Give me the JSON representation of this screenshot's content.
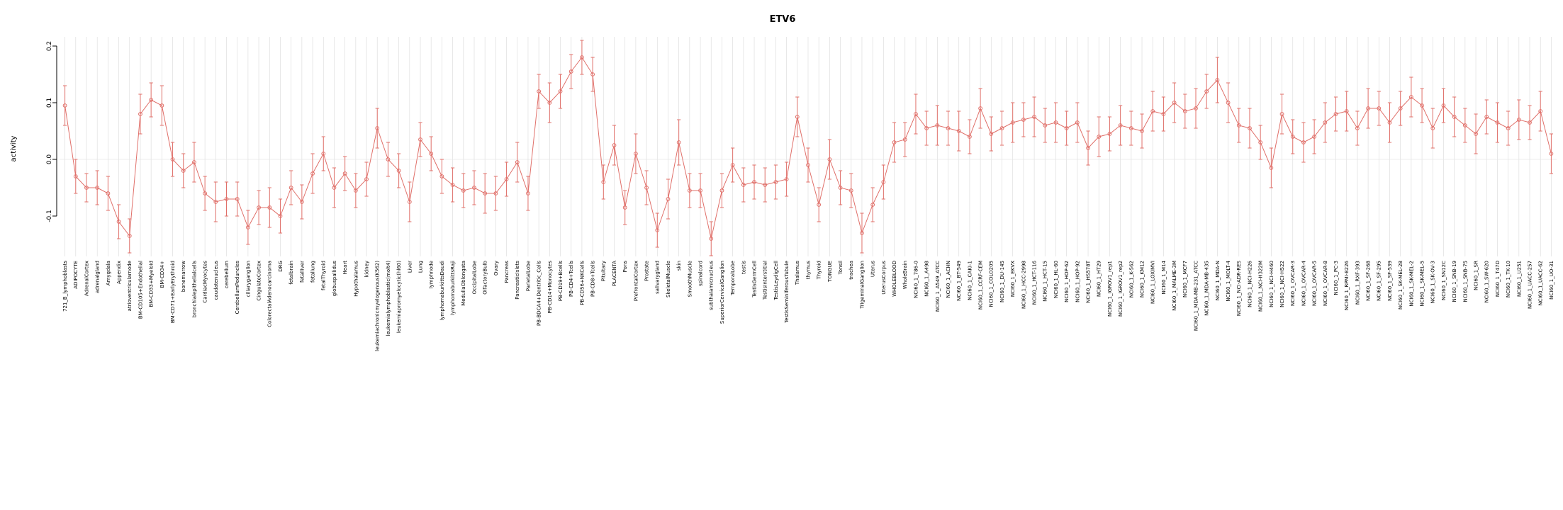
{
  "title": "ETV6",
  "chart_data": {
    "type": "line",
    "title": "ETV6",
    "xlabel": "",
    "ylabel": "activity",
    "ylim": [
      -0.19,
      0.22
    ],
    "yticks": [
      -0.1,
      0.0,
      0.1,
      0.2
    ],
    "ytick_labels": [
      "-0.1",
      "0.0",
      "0.1",
      "0.2"
    ],
    "grid": "vertical-per-category",
    "legend": "none",
    "marker": "open-circle",
    "error_bars": true,
    "series_color": "#e0706a",
    "grid_color": "#dedede",
    "zero_line_color": "#e6e6e6",
    "categories": [
      "721_B_lymphoblasts",
      "ADIPOCYTE",
      "AdrenalCortex",
      "adrenalgland",
      "Amygdala",
      "Appendix",
      "atrioventricularnode",
      "BM-CD105+Endothelial",
      "BM-CD33+Myeloid",
      "BM-CD34+",
      "BM-CD71+EarlyErythroid",
      "bonemarrow",
      "bronchialepithelialcells",
      "CardiacMyocytes",
      "caudatenucleus",
      "cerebellum",
      "CerebellumPeduncles",
      "ciliaryganglion",
      "CingulateCortex",
      "ColorectalAdenocarcinoma",
      "DRG",
      "fetalbrain",
      "fetalliver",
      "fetallung",
      "fetalThyroid",
      "globuspallidus",
      "Heart",
      "Hypothalamus",
      "kidney",
      "leukemiachronicmyelogenous(K562)",
      "leukemialymphoblastic(molt4)",
      "leukemiapromyelocytic(hl60)",
      "Liver",
      "Lung",
      "lymphnode",
      "lymphomaburkittsDaudi",
      "lymphomaburkittsRaji",
      "MedullaOblongata",
      "OccipitalLobe",
      "OlfactoryBulb",
      "Ovary",
      "Pancreas",
      "PancreaticIslets",
      "ParietalLobe",
      "PB-BDCA4+Dentritic_Cells",
      "PB-CD14+Monocytes",
      "PB-CD19+Bcells",
      "PB-CD4+Tcells",
      "PB-CD56+NKCells",
      "PB-CD8+Tcells",
      "Pituitary",
      "PLACENTA",
      "Pons",
      "PrefrontalCortex",
      "Prostate",
      "salivarygland",
      "SkeletalMuscle",
      "skin",
      "SmoothMuscle",
      "spinalcord",
      "subthalamicnucleus",
      "SuperiorCervicalGanglion",
      "TemporalLobe",
      "testis",
      "TestisGermCell",
      "TestisInterstitial",
      "TestisLeydigCell",
      "TestisSeminiferousTubule",
      "Thalamus",
      "thymus",
      "Thyroid",
      "TONGUE",
      "Tonsil",
      "trachea",
      "TrigeminalGanglion",
      "Uterus",
      "UterusCorpus",
      "WHOLEBLOOD",
      "WholeBrain",
      "NCI60_1_786-0",
      "NCI60_1_A498",
      "NCI60_1_A549_ATCC",
      "NCI60_1_ACHN",
      "NCI60_1_BT-549",
      "NCI60_1_CAKI-1",
      "NCI60_1_CCRF-CEM",
      "NCI60_1_COLO205",
      "NCI60_1_DU-145",
      "NCI60_1_EKVX",
      "NCI60_1_HCC-2998",
      "NCI60_1_HCT-116",
      "NCI60_1_HCT-15",
      "NCI60_1_HL-60",
      "NCI60_1_HOP-62",
      "NCI60_1_HOP-92",
      "NCI60_1_HS578T",
      "NCI60_1_HT29",
      "NCI60_1_IGROV1_rep1",
      "NCI60_1_IGROV1_rep2",
      "NCI60_1_K-562",
      "NCI60_1_KM12",
      "NCI60_1_LOXIMVI",
      "NCI60_1_M14",
      "NCI60_1_MALME-3M",
      "NCI60_1_MCF7",
      "NCI60_1_MDA-MB-231_ATCC",
      "NCI60_1_MDA-MB-435",
      "NCI60_1_MDA-N",
      "NCI60_1_MOLT-4",
      "NCI60_1_NCI-ADR-RES",
      "NCI60_1_NCI-H226",
      "NCI60_1_NCI-H322M",
      "NCI60_1_NCI-H460",
      "NCI60_1_NCI-H522",
      "NCI60_1_OVCAR-3",
      "NCI60_1_OVCAR-4",
      "NCI60_1_OVCAR-5",
      "NCI60_1_OVCAR-8",
      "NCI60_1_PC-3",
      "NCI60_1_RPMI-8226",
      "NCI60_1_RXF-393",
      "NCI60_1_SF-268",
      "NCI60_1_SF-295",
      "NCI60_1_SF-539",
      "NCI60_1_SK-MEL-28",
      "NCI60_1_SK-MEL-2",
      "NCI60_1_SK-MEL-5",
      "NCI60_1_SK-OV-3",
      "NCI60_1_SN12C",
      "NCI60_1_SNB-19",
      "NCI60_1_SNB-75",
      "NCI60_1_SR",
      "NCI60_1_SW-620",
      "NCI60_1_T47D",
      "NCI60_1_TK-10",
      "NCI60_1_U251",
      "NCI60_1_UACC-257",
      "NCI60_1_UACC-62",
      "NCI60_1_UO-31"
    ],
    "values": [
      0.095,
      -0.03,
      -0.05,
      -0.05,
      -0.06,
      -0.11,
      -0.135,
      0.08,
      0.105,
      0.095,
      0.0,
      -0.02,
      -0.005,
      -0.06,
      -0.075,
      -0.07,
      -0.07,
      -0.12,
      -0.085,
      -0.085,
      -0.1,
      -0.05,
      -0.075,
      -0.025,
      0.01,
      -0.05,
      -0.025,
      -0.055,
      -0.035,
      0.055,
      0.0,
      -0.02,
      -0.075,
      0.035,
      0.01,
      -0.03,
      -0.045,
      -0.055,
      -0.05,
      -0.06,
      -0.06,
      -0.035,
      -0.005,
      -0.06,
      0.12,
      0.1,
      0.12,
      0.155,
      0.18,
      0.15,
      -0.04,
      0.025,
      -0.085,
      0.01,
      -0.05,
      -0.125,
      -0.07,
      0.03,
      -0.055,
      -0.055,
      -0.14,
      -0.055,
      -0.01,
      -0.045,
      -0.04,
      -0.045,
      -0.04,
      -0.035,
      0.075,
      -0.01,
      -0.08,
      0.0,
      -0.05,
      -0.055,
      -0.13,
      -0.08,
      -0.04,
      0.03,
      0.035,
      0.08,
      0.055,
      0.06,
      0.055,
      0.05,
      0.04,
      0.09,
      0.045,
      0.055,
      0.065,
      0.07,
      0.075,
      0.06,
      0.065,
      0.055,
      0.065,
      0.02,
      0.04,
      0.045,
      0.06,
      0.055,
      0.05,
      0.085,
      0.08,
      0.1,
      0.085,
      0.09,
      0.12,
      0.14,
      0.1,
      0.06,
      0.055,
      0.03,
      -0.015,
      0.08,
      0.04,
      0.03,
      0.04,
      0.065,
      0.08,
      0.085,
      0.055,
      0.09,
      0.09,
      0.065,
      0.09,
      0.11,
      0.095,
      0.055,
      0.095,
      0.075,
      0.06,
      0.045,
      0.075,
      0.065,
      0.055,
      0.07,
      0.065,
      0.085,
      0.01
    ],
    "errors": [
      0.035,
      0.03,
      0.025,
      0.03,
      0.03,
      0.03,
      0.03,
      0.035,
      0.03,
      0.035,
      0.03,
      0.03,
      0.035,
      0.03,
      0.035,
      0.03,
      0.03,
      0.03,
      0.03,
      0.035,
      0.03,
      0.03,
      0.03,
      0.035,
      0.03,
      0.035,
      0.03,
      0.03,
      0.03,
      0.035,
      0.03,
      0.03,
      0.035,
      0.03,
      0.03,
      0.03,
      0.03,
      0.03,
      0.03,
      0.035,
      0.03,
      0.03,
      0.035,
      0.03,
      0.03,
      0.035,
      0.03,
      0.03,
      0.03,
      0.03,
      0.03,
      0.035,
      0.03,
      0.035,
      0.03,
      0.03,
      0.035,
      0.04,
      0.03,
      0.03,
      0.03,
      0.03,
      0.03,
      0.03,
      0.03,
      0.03,
      0.03,
      0.03,
      0.035,
      0.03,
      0.03,
      0.035,
      0.03,
      0.03,
      0.035,
      0.03,
      0.03,
      0.035,
      0.03,
      0.035,
      0.03,
      0.035,
      0.03,
      0.035,
      0.03,
      0.035,
      0.03,
      0.03,
      0.035,
      0.03,
      0.035,
      0.03,
      0.035,
      0.03,
      0.035,
      0.03,
      0.035,
      0.03,
      0.035,
      0.03,
      0.03,
      0.035,
      0.03,
      0.035,
      0.03,
      0.035,
      0.03,
      0.04,
      0.035,
      0.03,
      0.035,
      0.03,
      0.035,
      0.035,
      0.03,
      0.035,
      0.03,
      0.035,
      0.03,
      0.035,
      0.03,
      0.035,
      0.03,
      0.035,
      0.03,
      0.035,
      0.03,
      0.035,
      0.03,
      0.035,
      0.03,
      0.035,
      0.03,
      0.035,
      0.03,
      0.035,
      0.03,
      0.035,
      0.035
    ]
  }
}
